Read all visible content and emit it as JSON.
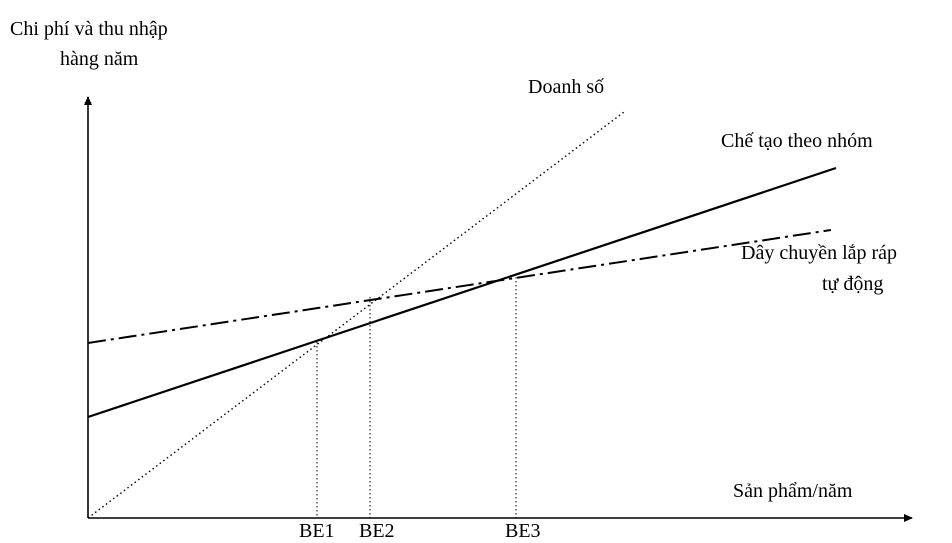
{
  "diagram": {
    "y_axis_label_line1": "Chi phí và thu nhập",
    "y_axis_label_line2": "hàng năm",
    "x_axis_label": "Sản phẩm/năm",
    "lines": {
      "sales": {
        "label": "Doanh số",
        "style": "dotted"
      },
      "group_manufacturing": {
        "label": "Chế tạo theo nhóm",
        "style": "solid"
      },
      "automated_assembly": {
        "label_line1": "Dây chuyền lắp ráp",
        "label_line2": "tự động",
        "style": "dash-dot"
      }
    },
    "break_even_points": [
      "BE1",
      "BE2",
      "BE3"
    ]
  },
  "colors": {
    "ink": "#000000",
    "background": "#ffffff"
  }
}
